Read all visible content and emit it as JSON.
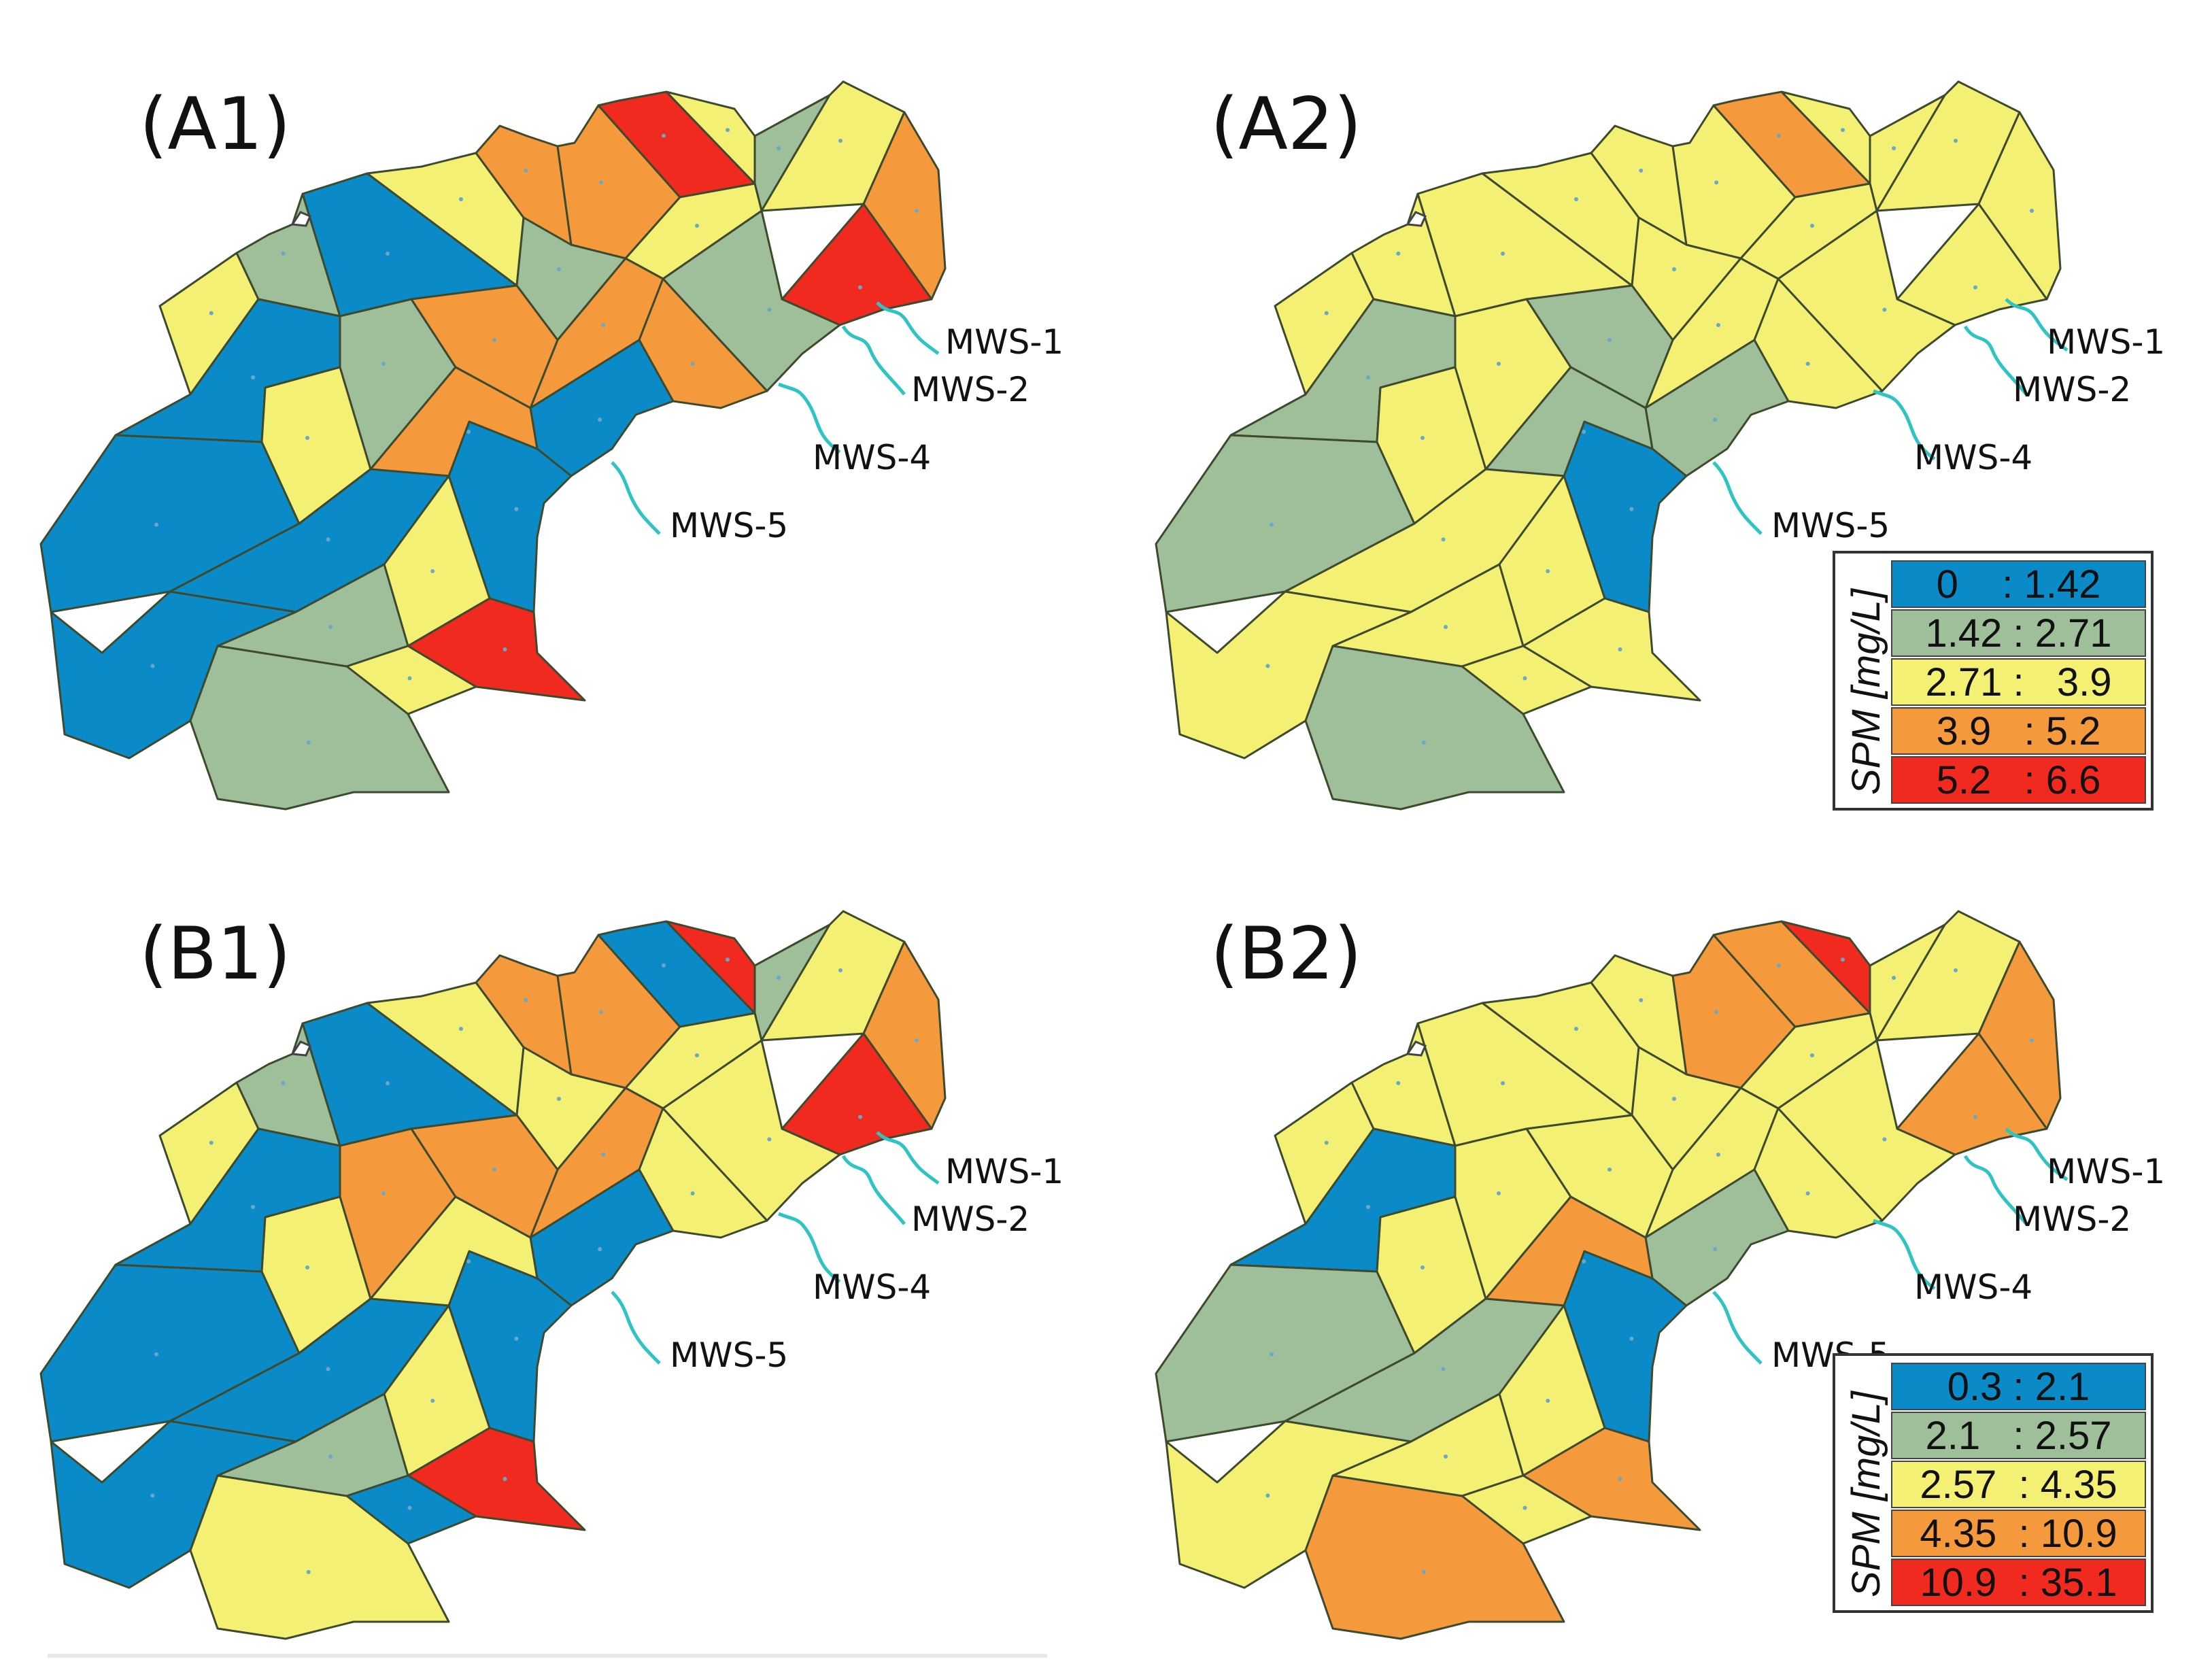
{
  "panels": [
    {
      "id": "A1",
      "label": "(A1)"
    },
    {
      "id": "A2",
      "label": "(A2)"
    },
    {
      "id": "B1",
      "label": "(B1)"
    },
    {
      "id": "B2",
      "label": "(B2)"
    }
  ],
  "stations": [
    "MWS-1",
    "MWS-2",
    "MWS-4",
    "MWS-5"
  ],
  "legends": [
    {
      "title": "SPM [mg/L]",
      "rows": [
        {
          "range": "0    : 1.42",
          "color": "#0a8bc8"
        },
        {
          "range": "1.42 : 2.71",
          "color": "#9fbf9b"
        },
        {
          "range": "2.71 :   3.9",
          "color": "#f4f074"
        },
        {
          "range": "3.9   : 5.2",
          "color": "#f59a3c"
        },
        {
          "range": "5.2   : 6.6",
          "color": "#f02a1e"
        }
      ]
    },
    {
      "title": "SPM [mg/L]",
      "rows": [
        {
          "range": "0.3 : 2.1",
          "color": "#0a8bc8"
        },
        {
          "range": "2.1   : 2.57",
          "color": "#9fbf9b"
        },
        {
          "range": "2.57  : 4.35",
          "color": "#f4f074"
        },
        {
          "range": "4.35  : 10.9",
          "color": "#f59a3c"
        },
        {
          "range": "10.9  : 35.1",
          "color": "#f02a1e"
        }
      ]
    }
  ],
  "classes": {
    "c1": "#0a8bc8",
    "c2": "#9fbf9b",
    "c3": "#f4f074",
    "c4": "#f59a3c",
    "c5": "#f02a1e"
  },
  "maps": {
    "A1": [
      3,
      2,
      1,
      3,
      4,
      4,
      5,
      3,
      2,
      3,
      4,
      5,
      2,
      3,
      2,
      4,
      4,
      1,
      1,
      1,
      1,
      3,
      2,
      4,
      4,
      1,
      3,
      2,
      5,
      3,
      1,
      2
    ],
    "A2": [
      3,
      3,
      3,
      3,
      3,
      3,
      4,
      3,
      3,
      3,
      3,
      3,
      3,
      3,
      3,
      3,
      3,
      2,
      1,
      2,
      2,
      3,
      3,
      2,
      2,
      3,
      3,
      3,
      3,
      3,
      3,
      2
    ],
    "B1": [
      3,
      2,
      1,
      3,
      4,
      4,
      1,
      5,
      2,
      3,
      4,
      5,
      3,
      3,
      3,
      4,
      3,
      1,
      1,
      1,
      1,
      3,
      4,
      4,
      3,
      1,
      3,
      2,
      5,
      1,
      1,
      3
    ],
    "B2": [
      3,
      3,
      3,
      3,
      3,
      4,
      4,
      5,
      3,
      3,
      4,
      4,
      3,
      3,
      3,
      3,
      3,
      2,
      1,
      1,
      2,
      3,
      3,
      3,
      4,
      2,
      3,
      3,
      4,
      3,
      3,
      4
    ]
  }
}
